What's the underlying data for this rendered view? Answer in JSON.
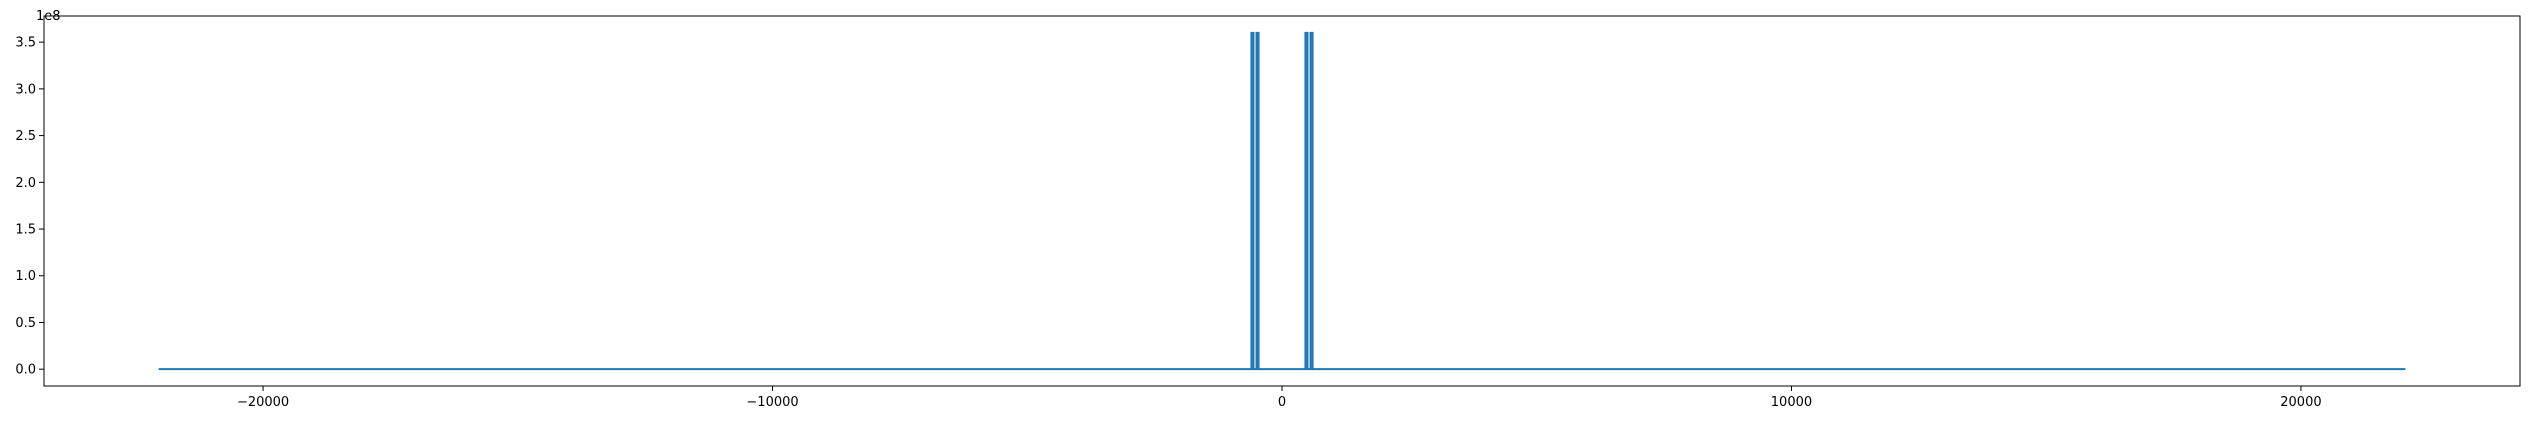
{
  "chart_data": {
    "type": "line",
    "title": "",
    "xlabel": "",
    "ylabel": "",
    "y_offset_label": "1e8",
    "xlim": [
      -24300,
      24300
    ],
    "ylim": [
      -0.18,
      3.78
    ],
    "y_scale_note": "y values in units of 1e8",
    "grid": false,
    "legend": "none",
    "line_color": "#1f77b4",
    "x_ticks": [
      {
        "value": -20000,
        "label": "−20000"
      },
      {
        "value": -10000,
        "label": "−10000"
      },
      {
        "value": 0,
        "label": "0"
      },
      {
        "value": 10000,
        "label": "10000"
      },
      {
        "value": 20000,
        "label": "20000"
      }
    ],
    "y_ticks": [
      {
        "value": 0.0,
        "label": "0.0"
      },
      {
        "value": 0.5,
        "label": "0.5"
      },
      {
        "value": 1.0,
        "label": "1.0"
      },
      {
        "value": 1.5,
        "label": "1.5"
      },
      {
        "value": 2.0,
        "label": "2.0"
      },
      {
        "value": 2.5,
        "label": "2.5"
      },
      {
        "value": 3.0,
        "label": "3.0"
      },
      {
        "value": 3.5,
        "label": "3.5"
      }
    ],
    "series": [
      {
        "x": [
          -22050,
          -600,
          -600,
          -560,
          -560,
          -500,
          -500,
          -460,
          -460,
          460,
          460,
          500,
          500,
          560,
          560,
          600,
          600,
          22050
        ],
        "y": [
          0,
          0,
          3.6,
          3.6,
          0,
          0,
          3.6,
          3.6,
          0,
          0,
          3.6,
          3.6,
          0,
          0,
          3.6,
          3.6,
          0,
          0
        ]
      }
    ]
  }
}
